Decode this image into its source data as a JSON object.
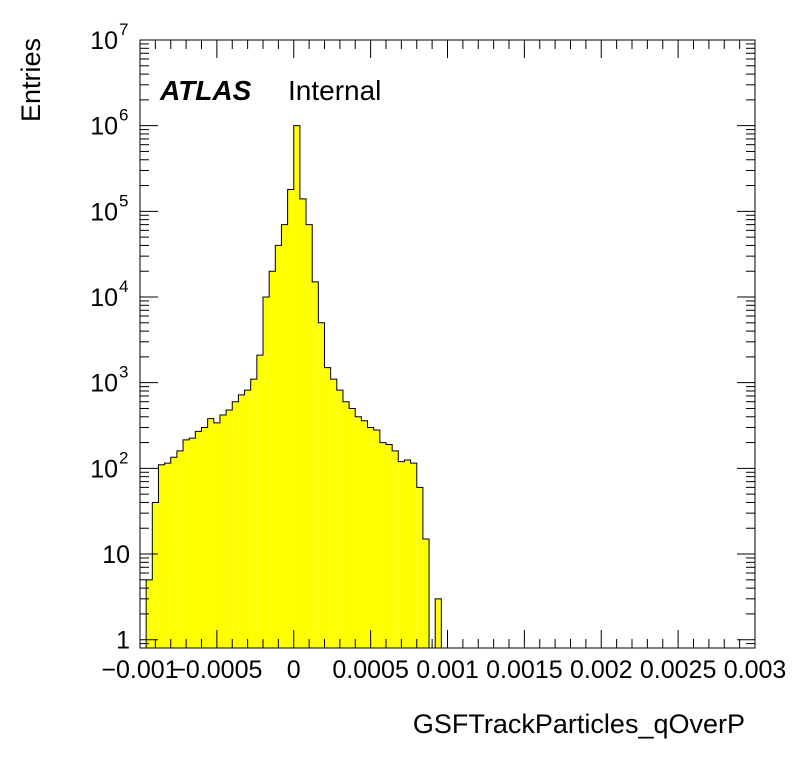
{
  "chart_data": {
    "type": "bar",
    "subtype": "histogram",
    "xlabel": "GSFTrackParticles_qOverP",
    "ylabel": "Entries",
    "y_scale": "log",
    "xlim": [
      -0.001,
      0.003
    ],
    "ylim": [
      0.8,
      10000000
    ],
    "fill_color": "#ffff00",
    "line_color": "#000000",
    "x_ticks": [
      {
        "value": -0.001,
        "label": "−0.001"
      },
      {
        "value": -0.0005,
        "label": "−0.0005"
      },
      {
        "value": 0,
        "label": "0"
      },
      {
        "value": 0.0005,
        "label": "0.0005"
      },
      {
        "value": 0.001,
        "label": "0.001"
      },
      {
        "value": 0.0015,
        "label": "0.0015"
      },
      {
        "value": 0.002,
        "label": "0.002"
      },
      {
        "value": 0.0025,
        "label": "0.0025"
      },
      {
        "value": 0.003,
        "label": "0.003"
      }
    ],
    "y_ticks": [
      {
        "value": 1,
        "base": "1",
        "exp": ""
      },
      {
        "value": 10,
        "base": "10",
        "exp": ""
      },
      {
        "value": 100,
        "base": "10",
        "exp": "2"
      },
      {
        "value": 1000,
        "base": "10",
        "exp": "3"
      },
      {
        "value": 10000,
        "base": "10",
        "exp": "4"
      },
      {
        "value": 100000,
        "base": "10",
        "exp": "5"
      },
      {
        "value": 1000000,
        "base": "10",
        "exp": "6"
      },
      {
        "value": 10000000,
        "base": "10",
        "exp": "7"
      }
    ],
    "bin_width": 4e-05,
    "bins": [
      {
        "x0": -0.00096,
        "value": 5
      },
      {
        "x0": -0.00092,
        "value": 40
      },
      {
        "x0": -0.00088,
        "value": 110
      },
      {
        "x0": -0.00084,
        "value": 115
      },
      {
        "x0": -0.0008,
        "value": 135
      },
      {
        "x0": -0.00076,
        "value": 160
      },
      {
        "x0": -0.00072,
        "value": 215
      },
      {
        "x0": -0.00068,
        "value": 225
      },
      {
        "x0": -0.00064,
        "value": 270
      },
      {
        "x0": -0.0006,
        "value": 300
      },
      {
        "x0": -0.00056,
        "value": 380
      },
      {
        "x0": -0.00052,
        "value": 340
      },
      {
        "x0": -0.00048,
        "value": 420
      },
      {
        "x0": -0.00044,
        "value": 480
      },
      {
        "x0": -0.0004,
        "value": 600
      },
      {
        "x0": -0.00036,
        "value": 720
      },
      {
        "x0": -0.00032,
        "value": 820
      },
      {
        "x0": -0.00028,
        "value": 1100
      },
      {
        "x0": -0.00024,
        "value": 2100
      },
      {
        "x0": -0.0002,
        "value": 10000
      },
      {
        "x0": -0.00016,
        "value": 20000
      },
      {
        "x0": -0.00012,
        "value": 40000
      },
      {
        "x0": -8e-05,
        "value": 70000
      },
      {
        "x0": -4e-05,
        "value": 180000
      },
      {
        "x0": 0,
        "value": 1000000
      },
      {
        "x0": 4e-05,
        "value": 140000
      },
      {
        "x0": 8e-05,
        "value": 70000
      },
      {
        "x0": 0.00012,
        "value": 15000
      },
      {
        "x0": 0.00016,
        "value": 5000
      },
      {
        "x0": 0.0002,
        "value": 1500
      },
      {
        "x0": 0.00024,
        "value": 1100
      },
      {
        "x0": 0.00028,
        "value": 820
      },
      {
        "x0": 0.00032,
        "value": 600
      },
      {
        "x0": 0.00036,
        "value": 500
      },
      {
        "x0": 0.0004,
        "value": 400
      },
      {
        "x0": 0.00044,
        "value": 360
      },
      {
        "x0": 0.00048,
        "value": 300
      },
      {
        "x0": 0.00052,
        "value": 280
      },
      {
        "x0": 0.00056,
        "value": 200
      },
      {
        "x0": 0.0006,
        "value": 190
      },
      {
        "x0": 0.00064,
        "value": 160
      },
      {
        "x0": 0.00068,
        "value": 120
      },
      {
        "x0": 0.00072,
        "value": 125
      },
      {
        "x0": 0.00076,
        "value": 115
      },
      {
        "x0": 0.0008,
        "value": 60
      },
      {
        "x0": 0.00084,
        "value": 15
      },
      {
        "x0": 0.00088,
        "value": 0
      },
      {
        "x0": 0.00092,
        "value": 3
      }
    ]
  },
  "label": {
    "atlas": "ATLAS",
    "status": "Internal"
  }
}
